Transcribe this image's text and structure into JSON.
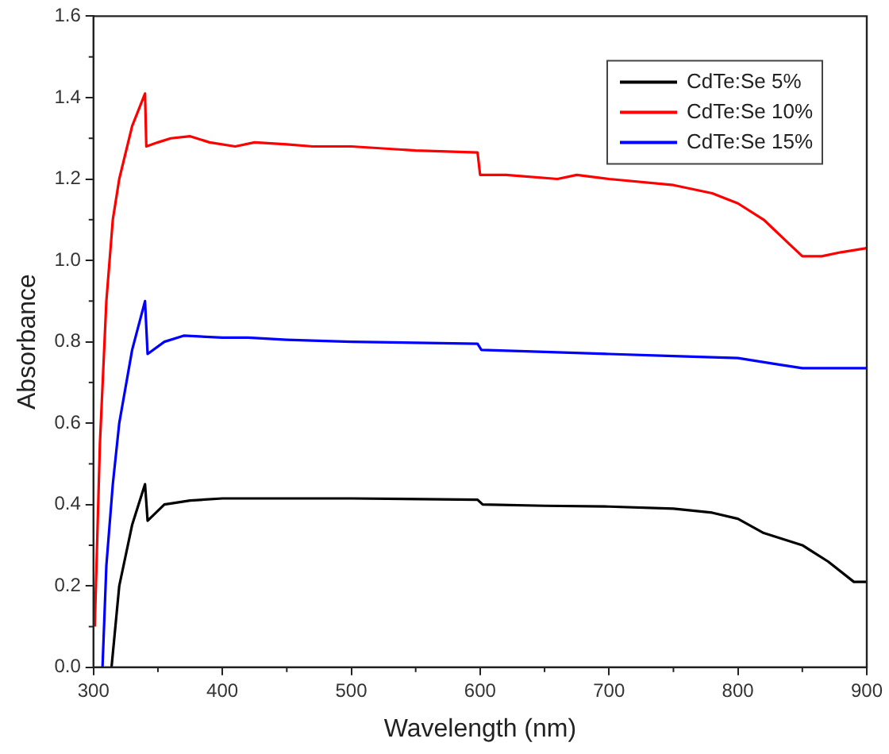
{
  "chart_data": {
    "type": "line",
    "xlabel": "Wavelength (nm)",
    "ylabel": "Absorbance",
    "xlim": [
      300,
      900
    ],
    "xticks": [
      300,
      400,
      500,
      600,
      700,
      800,
      900
    ],
    "ylim": [
      0,
      1.6
    ],
    "yticks": [
      {
        "value": 0,
        "label": "0.0"
      },
      0.2,
      0.4,
      0.6,
      0.8,
      {
        "value": 1,
        "label": "1.0"
      },
      1.2,
      1.4,
      1.6
    ],
    "grid": false,
    "legend": "top right",
    "marker": "none",
    "line_style": "solid",
    "series": [
      {
        "name": "CdTe:Se 5%",
        "color": "#000000",
        "x": [
          314,
          320,
          330,
          340,
          342,
          355,
          375,
          400,
          500,
          598,
          602,
          650,
          700,
          750,
          780,
          800,
          820,
          835,
          850,
          870,
          890,
          900
        ],
        "values": [
          0.0,
          0.2,
          0.35,
          0.45,
          0.36,
          0.4,
          0.41,
          0.415,
          0.415,
          0.412,
          0.4,
          0.397,
          0.395,
          0.39,
          0.38,
          0.365,
          0.33,
          0.315,
          0.3,
          0.26,
          0.21,
          0.21
        ]
      },
      {
        "name": "CdTe:Se 10%",
        "color": "#ff0000",
        "x": [
          301,
          305,
          310,
          315,
          320,
          330,
          340,
          341,
          350,
          360,
          375,
          390,
          410,
          425,
          450,
          470,
          500,
          550,
          598,
          600,
          620,
          660,
          675,
          700,
          750,
          780,
          800,
          820,
          840,
          850,
          865,
          880,
          900
        ],
        "values": [
          0.1,
          0.55,
          0.9,
          1.1,
          1.2,
          1.33,
          1.41,
          1.28,
          1.29,
          1.3,
          1.305,
          1.29,
          1.28,
          1.29,
          1.285,
          1.28,
          1.28,
          1.27,
          1.265,
          1.21,
          1.21,
          1.2,
          1.21,
          1.2,
          1.185,
          1.165,
          1.14,
          1.1,
          1.04,
          1.01,
          1.01,
          1.02,
          1.03
        ]
      },
      {
        "name": "CdTe:Se 15%",
        "color": "#0000ff",
        "x": [
          307,
          310,
          315,
          320,
          330,
          340,
          342,
          355,
          370,
          400,
          420,
          450,
          500,
          598,
          601,
          650,
          700,
          750,
          800,
          830,
          850,
          900
        ],
        "values": [
          0.0,
          0.25,
          0.45,
          0.6,
          0.78,
          0.9,
          0.77,
          0.8,
          0.815,
          0.81,
          0.81,
          0.805,
          0.8,
          0.795,
          0.78,
          0.775,
          0.77,
          0.765,
          0.76,
          0.745,
          0.735,
          0.735
        ]
      }
    ]
  }
}
